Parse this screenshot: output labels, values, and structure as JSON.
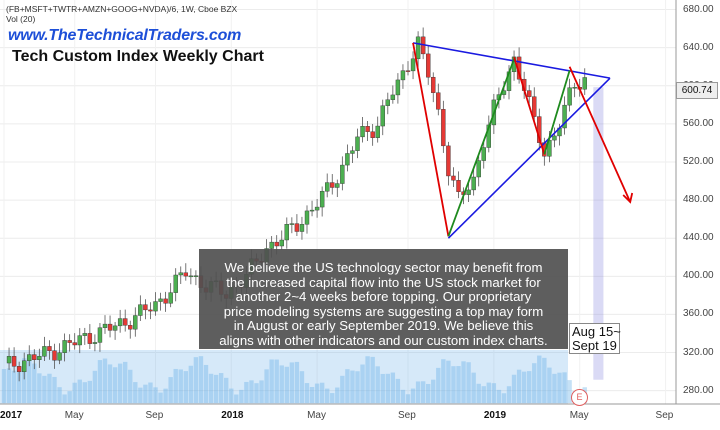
{
  "header": {
    "symbol": "(FB+MSFT+TWTR+AMZN+GOOG+NVDA)/6, 1W, Cboe BZX",
    "volume_label": "Vol (20)",
    "site": "www.TheTechnicalTraders.com",
    "title": "Tech Custom Index Weekly Chart"
  },
  "note": {
    "lines": [
      "We believe the US technology sector may benefit from",
      "the increased capital flow into the US stock market for",
      "another 2~4 weeks before topping.  Our proprietary",
      "price modeling systems are suggesting a top may form",
      "in August or early September 2019.  We believe this",
      "aligns with other indicators and our custom index charts."
    ]
  },
  "callout": {
    "line1": "Aug 15~",
    "line2": "Sept 19"
  },
  "last_price": "600.74",
  "marker": "E",
  "colors": {
    "up": "#4caf50",
    "down": "#e53935",
    "trend_blue": "#1a1ae0",
    "trend_red": "#e00000",
    "trend_green": "#1e8a1e",
    "volume": "#5aa9e6",
    "zone": "#6f6fd8"
  },
  "chart_data": {
    "type": "candlestick",
    "x_axis": {
      "ticks": [
        "2017",
        "May",
        "Sep",
        "2018",
        "May",
        "Sep",
        "2019",
        "May",
        "Sep"
      ]
    },
    "y_axis": {
      "ticks": [
        "280.00",
        "320.00",
        "360.00",
        "400.00",
        "440.00",
        "480.00",
        "520.00",
        "560.00",
        "600.00",
        "640.00",
        "680.00"
      ],
      "ylim": [
        266,
        690
      ]
    },
    "price_path": [
      [
        0,
        305
      ],
      [
        8,
        318
      ],
      [
        16,
        335
      ],
      [
        24,
        352
      ],
      [
        30,
        370
      ],
      [
        34,
        392
      ],
      [
        36,
        405
      ],
      [
        40,
        390
      ],
      [
        44,
        382
      ],
      [
        48,
        400
      ],
      [
        52,
        430
      ],
      [
        55,
        440
      ],
      [
        58,
        455
      ],
      [
        61,
        470
      ],
      [
        64,
        490
      ],
      [
        67,
        515
      ],
      [
        70,
        545
      ],
      [
        74,
        560
      ],
      [
        76,
        585
      ],
      [
        78,
        600
      ],
      [
        80,
        625
      ],
      [
        82,
        645
      ],
      [
        84,
        612
      ],
      [
        86,
        570
      ],
      [
        88,
        515
      ],
      [
        90,
        480
      ],
      [
        93,
        500
      ],
      [
        95,
        545
      ],
      [
        97,
        575
      ],
      [
        99,
        600
      ],
      [
        101,
        628
      ],
      [
        103,
        600
      ],
      [
        105,
        560
      ],
      [
        107,
        530
      ],
      [
        109,
        550
      ],
      [
        111,
        575
      ],
      [
        113,
        600
      ],
      [
        115,
        608
      ]
    ],
    "trendlines": [
      {
        "color": "blue",
        "points": [
          [
            81,
            645
          ],
          [
            120,
            608
          ]
        ]
      },
      {
        "color": "blue",
        "points": [
          [
            88,
            440
          ],
          [
            120,
            608
          ]
        ]
      },
      {
        "color": "red",
        "points": [
          [
            81,
            645
          ],
          [
            88,
            442
          ]
        ]
      },
      {
        "color": "green",
        "points": [
          [
            88,
            442
          ],
          [
            101,
            628
          ]
        ]
      },
      {
        "color": "red",
        "points": [
          [
            101,
            630
          ],
          [
            107,
            528
          ]
        ]
      },
      {
        "color": "green",
        "points": [
          [
            107,
            528
          ],
          [
            112,
            616
          ]
        ]
      },
      {
        "color": "red",
        "points": [
          [
            112,
            620
          ],
          [
            124,
            478
          ]
        ]
      }
    ],
    "projection_zone": {
      "from": 116.8,
      "to": 118.6,
      "top": 598,
      "bottom": 292
    }
  }
}
